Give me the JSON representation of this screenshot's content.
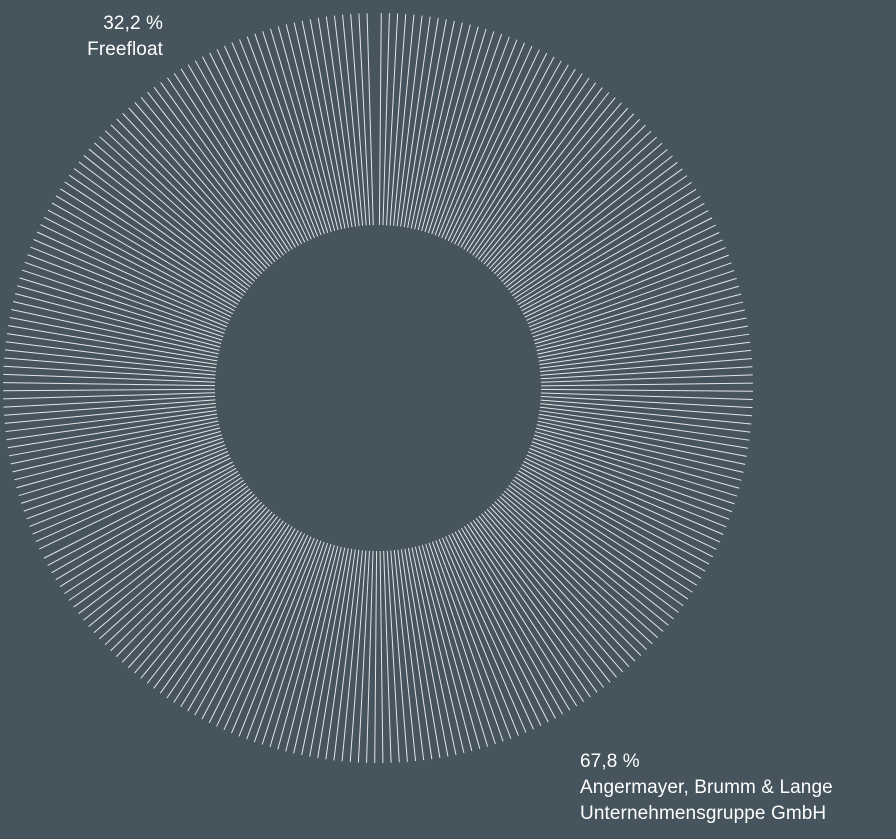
{
  "chart_data": {
    "type": "pie",
    "variant": "donut",
    "colors": {
      "background": "#45545d",
      "stroke": "#ffffff"
    },
    "slices": [
      {
        "label_lines": [
          "Angermayer, Brumm & Lange",
          "Unternehmensgruppe GmbH"
        ],
        "value": 67.8,
        "value_label": "67,8 %"
      },
      {
        "label_lines": [
          "Freefloat"
        ],
        "value": 32.2,
        "value_label": "32,2 %"
      }
    ]
  }
}
